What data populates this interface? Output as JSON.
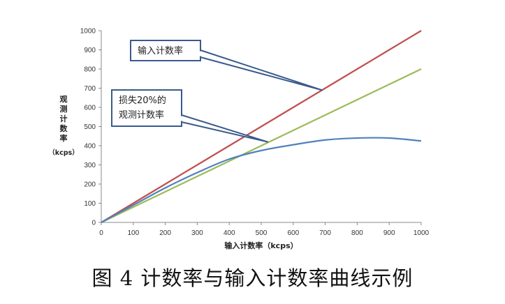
{
  "chart_data": {
    "type": "line",
    "x": [
      0,
      100,
      200,
      300,
      400,
      500,
      600,
      700,
      800,
      900,
      1000
    ],
    "xlim": [
      0,
      1000
    ],
    "ylim": [
      0,
      1000
    ],
    "xticks": [
      0,
      100,
      200,
      300,
      400,
      500,
      600,
      700,
      800,
      900,
      1000
    ],
    "yticks": [
      0,
      100,
      200,
      300,
      400,
      500,
      600,
      700,
      800,
      900,
      1000
    ],
    "xlabel": "输入计数率（kcps）",
    "ylabel": [
      "观",
      "测",
      "计",
      "数",
      "率",
      "（kcps）"
    ],
    "grid": false,
    "legend": "none",
    "series": [
      {
        "color": "#c0504d",
        "values": [
          0,
          100,
          200,
          300,
          400,
          500,
          600,
          700,
          800,
          900,
          1000
        ]
      },
      {
        "color": "#9bbb59",
        "values": [
          0,
          80,
          160,
          240,
          320,
          400,
          480,
          560,
          640,
          720,
          800
        ]
      },
      {
        "color": "#4f81bd",
        "values": [
          0,
          90,
          180,
          260,
          330,
          375,
          405,
          430,
          440,
          440,
          425
        ]
      }
    ],
    "annotations": [
      {
        "lines": [
          "输入计数率"
        ],
        "points_to": [
          690,
          690
        ]
      },
      {
        "lines": [
          "损失20%的",
          "观测计数率"
        ],
        "points_to": [
          520,
          420
        ]
      }
    ]
  },
  "caption": "图 4  计数率与输入计数率曲线示例",
  "colors": {
    "callout_border": "#3a5a8c",
    "callout_arrow": "#3a5a8c",
    "axis": "#888888"
  }
}
